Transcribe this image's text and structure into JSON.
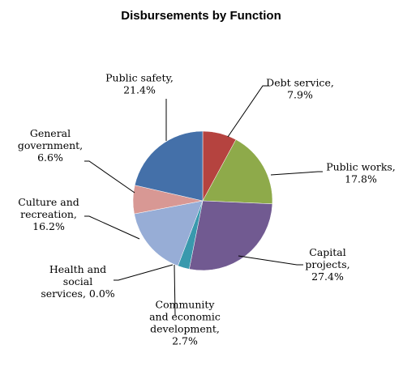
{
  "chart_data": {
    "type": "pie",
    "title": "Disbursements by Function",
    "slices": [
      {
        "label": [
          "Debt service,",
          "7.9%"
        ],
        "value": 7.9,
        "color": "#b5433f"
      },
      {
        "label": [
          "Public works,",
          "17.8%"
        ],
        "value": 17.8,
        "color": "#8eaa4a"
      },
      {
        "label": [
          "Capital",
          "projects,",
          "27.4%"
        ],
        "value": 27.4,
        "color": "#715a91"
      },
      {
        "label": [
          "Community",
          "and economic",
          "development,",
          "2.7%"
        ],
        "value": 2.7,
        "color": "#3999ad"
      },
      {
        "label": [
          "Health and",
          "social",
          "services, 0.0%"
        ],
        "value": 0.0,
        "color": "#f39a3d"
      },
      {
        "label": [
          "Culture and",
          "recreation,",
          "16.2%"
        ],
        "value": 16.2,
        "color": "#97add6"
      },
      {
        "label": [
          "General",
          "government,",
          "6.6%"
        ],
        "value": 6.6,
        "color": "#d89894"
      },
      {
        "label": [
          "Public safety,",
          "21.4%"
        ],
        "value": 21.4,
        "color": "#4470a9"
      }
    ]
  }
}
